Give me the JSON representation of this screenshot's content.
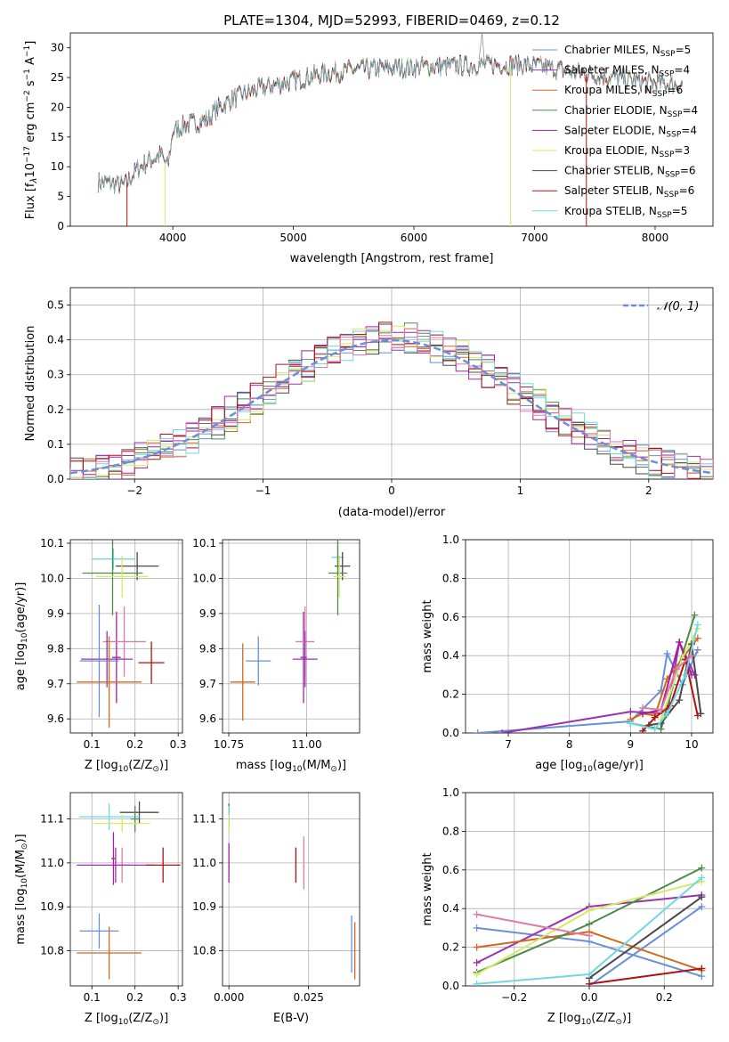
{
  "colors": {
    "chabrier_miles": "#6a8fd8",
    "salpeter_miles": "#9b30b0",
    "kroupa_miles": "#d2691e",
    "chabrier_elodie": "#4e8a4e",
    "salpeter_elodie": "#a020a0",
    "kroupa_elodie": "#d6e86a",
    "chabrier_stelib": "#4a4a4a",
    "salpeter_stelib": "#b01010",
    "kroupa_stelib": "#70d8e0",
    "pink": "#e07aa8",
    "normal_curve": "#6a8fd8",
    "grid": "#b0b0b0"
  },
  "chart_data": [
    {
      "id": "spectrum",
      "type": "line",
      "title": "PLATE=1304, MJD=52993, FIBERID=0469, z=0.12",
      "xlabel": "wavelength [Angstrom, rest frame]",
      "ylabel": "Flux [f_λ10⁻¹⁷ erg cm⁻² s⁻¹ A⁻¹]",
      "ylabel_parts": {
        "a": "Flux [f",
        "b": "λ",
        "c": "10",
        "d": "−17",
        "e": " erg cm",
        "f": "−2",
        "g": " s",
        "h": "−1",
        "i": " A",
        "j": "−1",
        "k": "]"
      },
      "xlim": [
        3150,
        8480
      ],
      "ylim": [
        0,
        32.5
      ],
      "xticks": [
        4000,
        5000,
        6000,
        7000,
        8000
      ],
      "yticks": [
        0,
        5,
        10,
        15,
        20,
        25,
        30
      ],
      "grid": false,
      "legend_position": "top-right",
      "legend": [
        {
          "base": "Chabrier MILES, N",
          "sub": "SSP",
          "tail": "=5",
          "color_key": "chabrier_miles"
        },
        {
          "base": "Salpeter MILES, N",
          "sub": "SSP",
          "tail": "=4",
          "color_key": "salpeter_miles"
        },
        {
          "base": "Kroupa MILES, N",
          "sub": "SSP",
          "tail": "=6",
          "color_key": "kroupa_miles"
        },
        {
          "base": "Chabrier ELODIE, N",
          "sub": "SSP",
          "tail": "=4",
          "color_key": "chabrier_elodie"
        },
        {
          "base": "Salpeter ELODIE, N",
          "sub": "SSP",
          "tail": "=4",
          "color_key": "salpeter_elodie"
        },
        {
          "base": "Kroupa ELODIE, N",
          "sub": "SSP",
          "tail": "=3",
          "color_key": "kroupa_elodie"
        },
        {
          "base": "Chabrier STELIB, N",
          "sub": "SSP",
          "tail": "=6",
          "color_key": "chabrier_stelib"
        },
        {
          "base": "Salpeter STELIB, N",
          "sub": "SSP",
          "tail": "=6",
          "color_key": "salpeter_stelib"
        },
        {
          "base": "Kroupa STELIB, N",
          "sub": "SSP",
          "tail": "=5",
          "color_key": "kroupa_stelib"
        }
      ],
      "continuum": [
        [
          3380,
          7.5
        ],
        [
          3500,
          7.2
        ],
        [
          3600,
          6.8
        ],
        [
          3700,
          9.5
        ],
        [
          3800,
          11
        ],
        [
          3900,
          12
        ],
        [
          3960,
          10
        ],
        [
          4000,
          16
        ],
        [
          4100,
          17
        ],
        [
          4200,
          17.5
        ],
        [
          4300,
          18
        ],
        [
          4350,
          19.5
        ],
        [
          4500,
          21.5
        ],
        [
          4700,
          23
        ],
        [
          4900,
          24
        ],
        [
          5100,
          25
        ],
        [
          5300,
          25.8
        ],
        [
          5500,
          26.3
        ],
        [
          5800,
          26.6
        ],
        [
          6100,
          26.8
        ],
        [
          6400,
          27
        ],
        [
          6700,
          27.2
        ],
        [
          7000,
          27
        ],
        [
          7300,
          26
        ],
        [
          7600,
          25.2
        ],
        [
          7900,
          24.2
        ],
        [
          8230,
          23.8
        ]
      ],
      "drops": [
        [
          3620,
          0
        ],
        [
          3935,
          0
        ],
        [
          6800,
          0
        ],
        [
          7430,
          0
        ]
      ]
    },
    {
      "id": "residuals",
      "type": "line",
      "xlabel": "(data-model)/error",
      "ylabel": "Normed distribution",
      "xlim": [
        -2.5,
        2.5
      ],
      "ylim": [
        0,
        0.55
      ],
      "xticks": [
        -2,
        -1,
        0,
        1,
        2
      ],
      "xtick_labels": [
        "−2",
        "−1",
        "0",
        "1",
        "2"
      ],
      "yticks": [
        0,
        0.1,
        0.2,
        0.3,
        0.4,
        0.5
      ],
      "ytick_labels": [
        "0.0",
        "0.1",
        "0.2",
        "0.3",
        "0.4",
        "0.5"
      ],
      "grid": true,
      "legend_position": "top-right",
      "legend": {
        "label": "𝒩(0, 1)"
      },
      "bin_width": 0.1
    },
    {
      "id": "age_vs_Z",
      "type": "scatter",
      "xlabel_parts": {
        "a": "Z [log",
        "b": "10",
        "c": "(Z/Z",
        "d": "⊙",
        "e": ")]"
      },
      "ylabel_parts": {
        "a": "age  [log",
        "b": "10",
        "c": "(age/yr)]"
      },
      "xlim": [
        0.05,
        0.31
      ],
      "ylim": [
        9.56,
        10.11
      ],
      "xticks": [
        0.1,
        0.2,
        0.3
      ],
      "xtick_labels": [
        "0.1",
        "0.2",
        "0.3"
      ],
      "yticks": [
        9.6,
        9.7,
        9.8,
        9.9,
        10.0,
        10.1
      ],
      "ytick_labels": [
        "9.6",
        "9.7",
        "9.8",
        "9.9",
        "10.0",
        "10.1"
      ],
      "grid": true,
      "points": [
        {
          "color_key": "kroupa_stelib",
          "x": 0.15,
          "xerr": 0.05,
          "y": 10.055,
          "yerr": 0.03
        },
        {
          "color_key": "chabrier_stelib",
          "x": 0.205,
          "xerr": 0.05,
          "y": 10.035,
          "yerr": 0.04
        },
        {
          "color_key": "chabrier_elodie",
          "x": 0.148,
          "xerr": 0.07,
          "y": 10.015,
          "yerr": 0.12
        },
        {
          "color_key": "kroupa_elodie",
          "x": 0.17,
          "xerr": 0.06,
          "y": 10.005,
          "yerr": 0.06
        },
        {
          "color_key": "salpeter_elodie",
          "x": 0.157,
          "xerr": 0.01,
          "y": 9.775,
          "yerr": 0.13
        },
        {
          "color_key": "pink",
          "x": 0.175,
          "xerr": 0.05,
          "y": 9.82,
          "yerr": 0.1
        },
        {
          "color_key": "salpeter_miles",
          "x": 0.135,
          "xerr": 0.06,
          "y": 9.77,
          "yerr": 0.08
        },
        {
          "color_key": "chabrier_miles",
          "x": 0.117,
          "xerr": 0.045,
          "y": 9.765,
          "yerr": 0.16
        },
        {
          "color_key": "salpeter_stelib",
          "x": 0.238,
          "xerr": 0.03,
          "y": 9.76,
          "yerr": 0.06
        },
        {
          "color_key": "kroupa_miles",
          "x": 0.14,
          "xerr": 0.075,
          "y": 9.705,
          "yerr": 0.13
        }
      ]
    },
    {
      "id": "age_vs_mass",
      "type": "scatter",
      "xlabel_parts": {
        "a": "mass [log",
        "b": "10",
        "c": "(M/M",
        "d": "⊙",
        "e": ")]"
      },
      "xlim": [
        10.73,
        11.17
      ],
      "ylim": [
        9.56,
        10.11
      ],
      "xticks": [
        10.75,
        11.0
      ],
      "xtick_labels": [
        "10.75",
        "11.00"
      ],
      "yticks": [
        9.6,
        9.7,
        9.8,
        9.9,
        10.0,
        10.1
      ],
      "ytick_labels": [
        "9.6",
        "9.7",
        "9.8",
        "9.9",
        "10.0",
        "10.1"
      ],
      "grid": true,
      "points": [
        {
          "color_key": "kroupa_stelib",
          "x": 11.1,
          "xerr": 0.02,
          "y": 10.06,
          "yerr": 0.03
        },
        {
          "color_key": "chabrier_stelib",
          "x": 11.115,
          "xerr": 0.025,
          "y": 10.035,
          "yerr": 0.04
        },
        {
          "color_key": "chabrier_elodie",
          "x": 11.1,
          "xerr": 0.03,
          "y": 10.015,
          "yerr": 0.12
        },
        {
          "color_key": "kroupa_elodie",
          "x": 11.105,
          "xerr": 0.02,
          "y": 10.005,
          "yerr": 0.06
        },
        {
          "color_key": "salpeter_elodie",
          "x": 10.99,
          "xerr": 0.01,
          "y": 9.775,
          "yerr": 0.13
        },
        {
          "color_key": "pink",
          "x": 10.995,
          "xerr": 0.03,
          "y": 9.82,
          "yerr": 0.1
        },
        {
          "color_key": "salpeter_miles",
          "x": 10.995,
          "xerr": 0.04,
          "y": 9.77,
          "yerr": 0.08
        },
        {
          "color_key": "chabrier_miles",
          "x": 10.845,
          "xerr": 0.04,
          "y": 9.765,
          "yerr": 0.07
        },
        {
          "color_key": "kroupa_miles",
          "x": 10.795,
          "xerr": 0.04,
          "y": 9.705,
          "yerr": 0.11
        }
      ]
    },
    {
      "id": "massweight_vs_age",
      "type": "line",
      "xlabel_parts": {
        "a": "age  [log",
        "b": "10",
        "c": "(age/yr)]"
      },
      "ylabel": "mass weight",
      "xlim": [
        6.3,
        10.35
      ],
      "ylim": [
        0,
        1
      ],
      "xticks": [
        7,
        8,
        9,
        10
      ],
      "xtick_labels": [
        "7",
        "8",
        "9",
        "10"
      ],
      "yticks": [
        0,
        0.2,
        0.4,
        0.6,
        0.8,
        1.0
      ],
      "ytick_labels": [
        "0.0",
        "0.2",
        "0.4",
        "0.6",
        "0.8",
        "1.0"
      ],
      "grid": true,
      "series": [
        {
          "color_key": "chabrier_miles",
          "x": [
            6.5,
            9.0,
            9.5,
            9.6,
            9.85,
            10.1
          ],
          "y": [
            0.0,
            0.06,
            0.22,
            0.41,
            0.25,
            0.43
          ]
        },
        {
          "color_key": "salpeter_miles",
          "x": [
            6.9,
            9.0,
            9.6,
            9.8,
            10.05
          ],
          "y": [
            0.0,
            0.11,
            0.1,
            0.47,
            0.3
          ]
        },
        {
          "color_key": "kroupa_miles",
          "x": [
            9.0,
            9.2,
            9.4,
            9.6,
            10.1
          ],
          "y": [
            0.07,
            0.1,
            0.09,
            0.28,
            0.49
          ]
        },
        {
          "color_key": "chabrier_elodie",
          "x": [
            9.0,
            9.5,
            9.7,
            10.05
          ],
          "y": [
            0.05,
            0.02,
            0.25,
            0.61
          ]
        },
        {
          "color_key": "salpeter_elodie",
          "x": [
            9.2,
            9.5,
            9.8,
            10.0
          ],
          "y": [
            0.1,
            0.12,
            0.47,
            0.3
          ]
        },
        {
          "color_key": "kroupa_elodie",
          "x": [
            9.5,
            9.85,
            10.1
          ],
          "y": [
            0.07,
            0.39,
            0.54
          ]
        },
        {
          "color_key": "chabrier_stelib",
          "x": [
            9.3,
            9.5,
            9.8,
            10.0,
            10.15
          ],
          "y": [
            0.04,
            0.05,
            0.17,
            0.46,
            0.1
          ]
        },
        {
          "color_key": "salpeter_stelib",
          "x": [
            9.2,
            9.4,
            9.65,
            9.9,
            10.1
          ],
          "y": [
            0.01,
            0.08,
            0.14,
            0.38,
            0.09
          ]
        },
        {
          "color_key": "kroupa_stelib",
          "x": [
            9.0,
            9.4,
            9.6,
            9.9,
            10.1
          ],
          "y": [
            0.05,
            0.02,
            0.1,
            0.3,
            0.56
          ]
        },
        {
          "color_key": "pink",
          "x": [
            9.2,
            9.5,
            9.75,
            10.0
          ],
          "y": [
            0.13,
            0.12,
            0.33,
            0.4
          ]
        }
      ]
    },
    {
      "id": "mass_vs_Z",
      "type": "scatter",
      "xlabel_parts": {
        "a": "Z [log",
        "b": "10",
        "c": "(Z/Z",
        "d": "⊙",
        "e": ")]"
      },
      "ylabel_parts": {
        "a": "mass [log",
        "b": "10",
        "c": "(M/M",
        "d": "⊙",
        "e": ")]"
      },
      "xlim": [
        0.05,
        0.31
      ],
      "ylim": [
        10.72,
        11.16
      ],
      "xticks": [
        0.1,
        0.2,
        0.3
      ],
      "xtick_labels": [
        "0.1",
        "0.2",
        "0.3"
      ],
      "yticks": [
        10.8,
        10.9,
        11.0,
        11.1
      ],
      "ytick_labels": [
        "10.8",
        "10.9",
        "11.0",
        "11.1"
      ],
      "grid": true,
      "points": [
        {
          "color_key": "chabrier_stelib",
          "x": 0.21,
          "xerr": 0.045,
          "y": 11.115,
          "yerr": 0.025
        },
        {
          "color_key": "kroupa_stelib",
          "x": 0.14,
          "xerr": 0.07,
          "y": 11.105,
          "yerr": 0.03
        },
        {
          "color_key": "chabrier_elodie",
          "x": 0.2,
          "xerr": 0.01,
          "y": 11.1,
          "yerr": 0.03
        },
        {
          "color_key": "kroupa_elodie",
          "x": 0.17,
          "xerr": 0.065,
          "y": 11.09,
          "yerr": 0.02
        },
        {
          "color_key": "pink",
          "x": 0.17,
          "xerr": 0.02,
          "y": 10.995,
          "yerr": 0.04
        },
        {
          "color_key": "salpeter_elodie",
          "x": 0.15,
          "xerr": 0.005,
          "y": 11.01,
          "yerr": 0.06
        },
        {
          "color_key": "salpeter_miles",
          "x": 0.155,
          "xerr": 0.09,
          "y": 10.995,
          "yerr": 0.04
        },
        {
          "color_key": "salpeter_stelib",
          "x": 0.265,
          "xerr": 0.04,
          "y": 10.995,
          "yerr": 0.04
        },
        {
          "color_key": "chabrier_miles",
          "x": 0.117,
          "xerr": 0.045,
          "y": 10.845,
          "yerr": 0.04
        },
        {
          "color_key": "kroupa_miles",
          "x": 0.14,
          "xerr": 0.075,
          "y": 10.795,
          "yerr": 0.06
        }
      ]
    },
    {
      "id": "mass_vs_EBV",
      "type": "scatter",
      "xlabel": "E(B-V)",
      "xlim": [
        -0.002,
        0.041
      ],
      "ylim": [
        10.72,
        11.16
      ],
      "xticks": [
        0.0,
        0.025
      ],
      "xtick_labels": [
        "0.000",
        "0.025"
      ],
      "yticks": [
        10.8,
        10.9,
        11.0,
        11.1
      ],
      "ytick_labels": [
        "10.8",
        "10.9",
        "11.0",
        "11.1"
      ],
      "grid": true,
      "points": [
        {
          "color_key": "chabrier_stelib",
          "x": 0.0,
          "xerr": 0,
          "y": 11.11,
          "yerr": 0.025
        },
        {
          "color_key": "kroupa_stelib",
          "x": 0.0,
          "xerr": 0,
          "y": 11.1,
          "yerr": 0.03
        },
        {
          "color_key": "kroupa_elodie",
          "x": 0.0,
          "xerr": 0,
          "y": 11.09,
          "yerr": 0.02
        },
        {
          "color_key": "salpeter_elodie",
          "x": 0.0,
          "xerr": 0,
          "y": 11.0,
          "yerr": 0.045
        },
        {
          "color_key": "salpeter_stelib",
          "x": 0.021,
          "xerr": 0,
          "y": 10.995,
          "yerr": 0.04
        },
        {
          "color_key": "pink",
          "x": 0.0235,
          "xerr": 0,
          "y": 11.0,
          "yerr": 0.06
        },
        {
          "color_key": "chabrier_miles",
          "x": 0.0385,
          "xerr": 0,
          "y": 10.815,
          "yerr": 0.065
        },
        {
          "color_key": "kroupa_miles",
          "x": 0.0395,
          "xerr": 0,
          "y": 10.8,
          "yerr": 0.065
        }
      ]
    },
    {
      "id": "massweight_vs_Z",
      "type": "line",
      "xlabel_parts": {
        "a": "Z [log",
        "b": "10",
        "c": "(Z/Z",
        "d": "⊙",
        "e": ")]"
      },
      "ylabel": "mass weight",
      "xlim": [
        -0.33,
        0.33
      ],
      "ylim": [
        0,
        1
      ],
      "xticks": [
        -0.2,
        0.0,
        0.2
      ],
      "xtick_labels": [
        "−0.2",
        "0.0",
        "0.2"
      ],
      "yticks": [
        0,
        0.2,
        0.4,
        0.6,
        0.8,
        1.0
      ],
      "ytick_labels": [
        "0.0",
        "0.2",
        "0.4",
        "0.6",
        "0.8",
        "1.0"
      ],
      "grid": true,
      "series": [
        {
          "color_key": "chabrier_miles",
          "x": [
            -0.3,
            0.0,
            0.3
          ],
          "y": [
            0.3,
            0.23,
            0.05
          ]
        },
        {
          "color_key": "chabrier_miles",
          "x": [
            0.0,
            0.3
          ],
          "y": [
            0.0,
            0.41
          ]
        },
        {
          "color_key": "salpeter_miles",
          "x": [
            -0.3,
            0.0,
            0.3
          ],
          "y": [
            0.12,
            0.41,
            0.47
          ]
        },
        {
          "color_key": "kroupa_miles",
          "x": [
            -0.3,
            0.0,
            0.3
          ],
          "y": [
            0.2,
            0.28,
            0.08
          ]
        },
        {
          "color_key": "chabrier_elodie",
          "x": [
            -0.3,
            0.0,
            0.3
          ],
          "y": [
            0.07,
            0.32,
            0.61
          ]
        },
        {
          "color_key": "kroupa_elodie",
          "x": [
            -0.3,
            0.0,
            0.3
          ],
          "y": [
            0.06,
            0.39,
            0.54
          ]
        },
        {
          "color_key": "chabrier_stelib",
          "x": [
            0.0,
            0.3
          ],
          "y": [
            0.04,
            0.46
          ]
        },
        {
          "color_key": "salpeter_stelib",
          "x": [
            0.0,
            0.3
          ],
          "y": [
            0.01,
            0.09
          ]
        },
        {
          "color_key": "kroupa_stelib",
          "x": [
            -0.3,
            0.0,
            0.3
          ],
          "y": [
            0.01,
            0.06,
            0.56
          ]
        },
        {
          "color_key": "pink",
          "x": [
            -0.3,
            0.0
          ],
          "y": [
            0.37,
            0.26
          ]
        }
      ]
    }
  ]
}
